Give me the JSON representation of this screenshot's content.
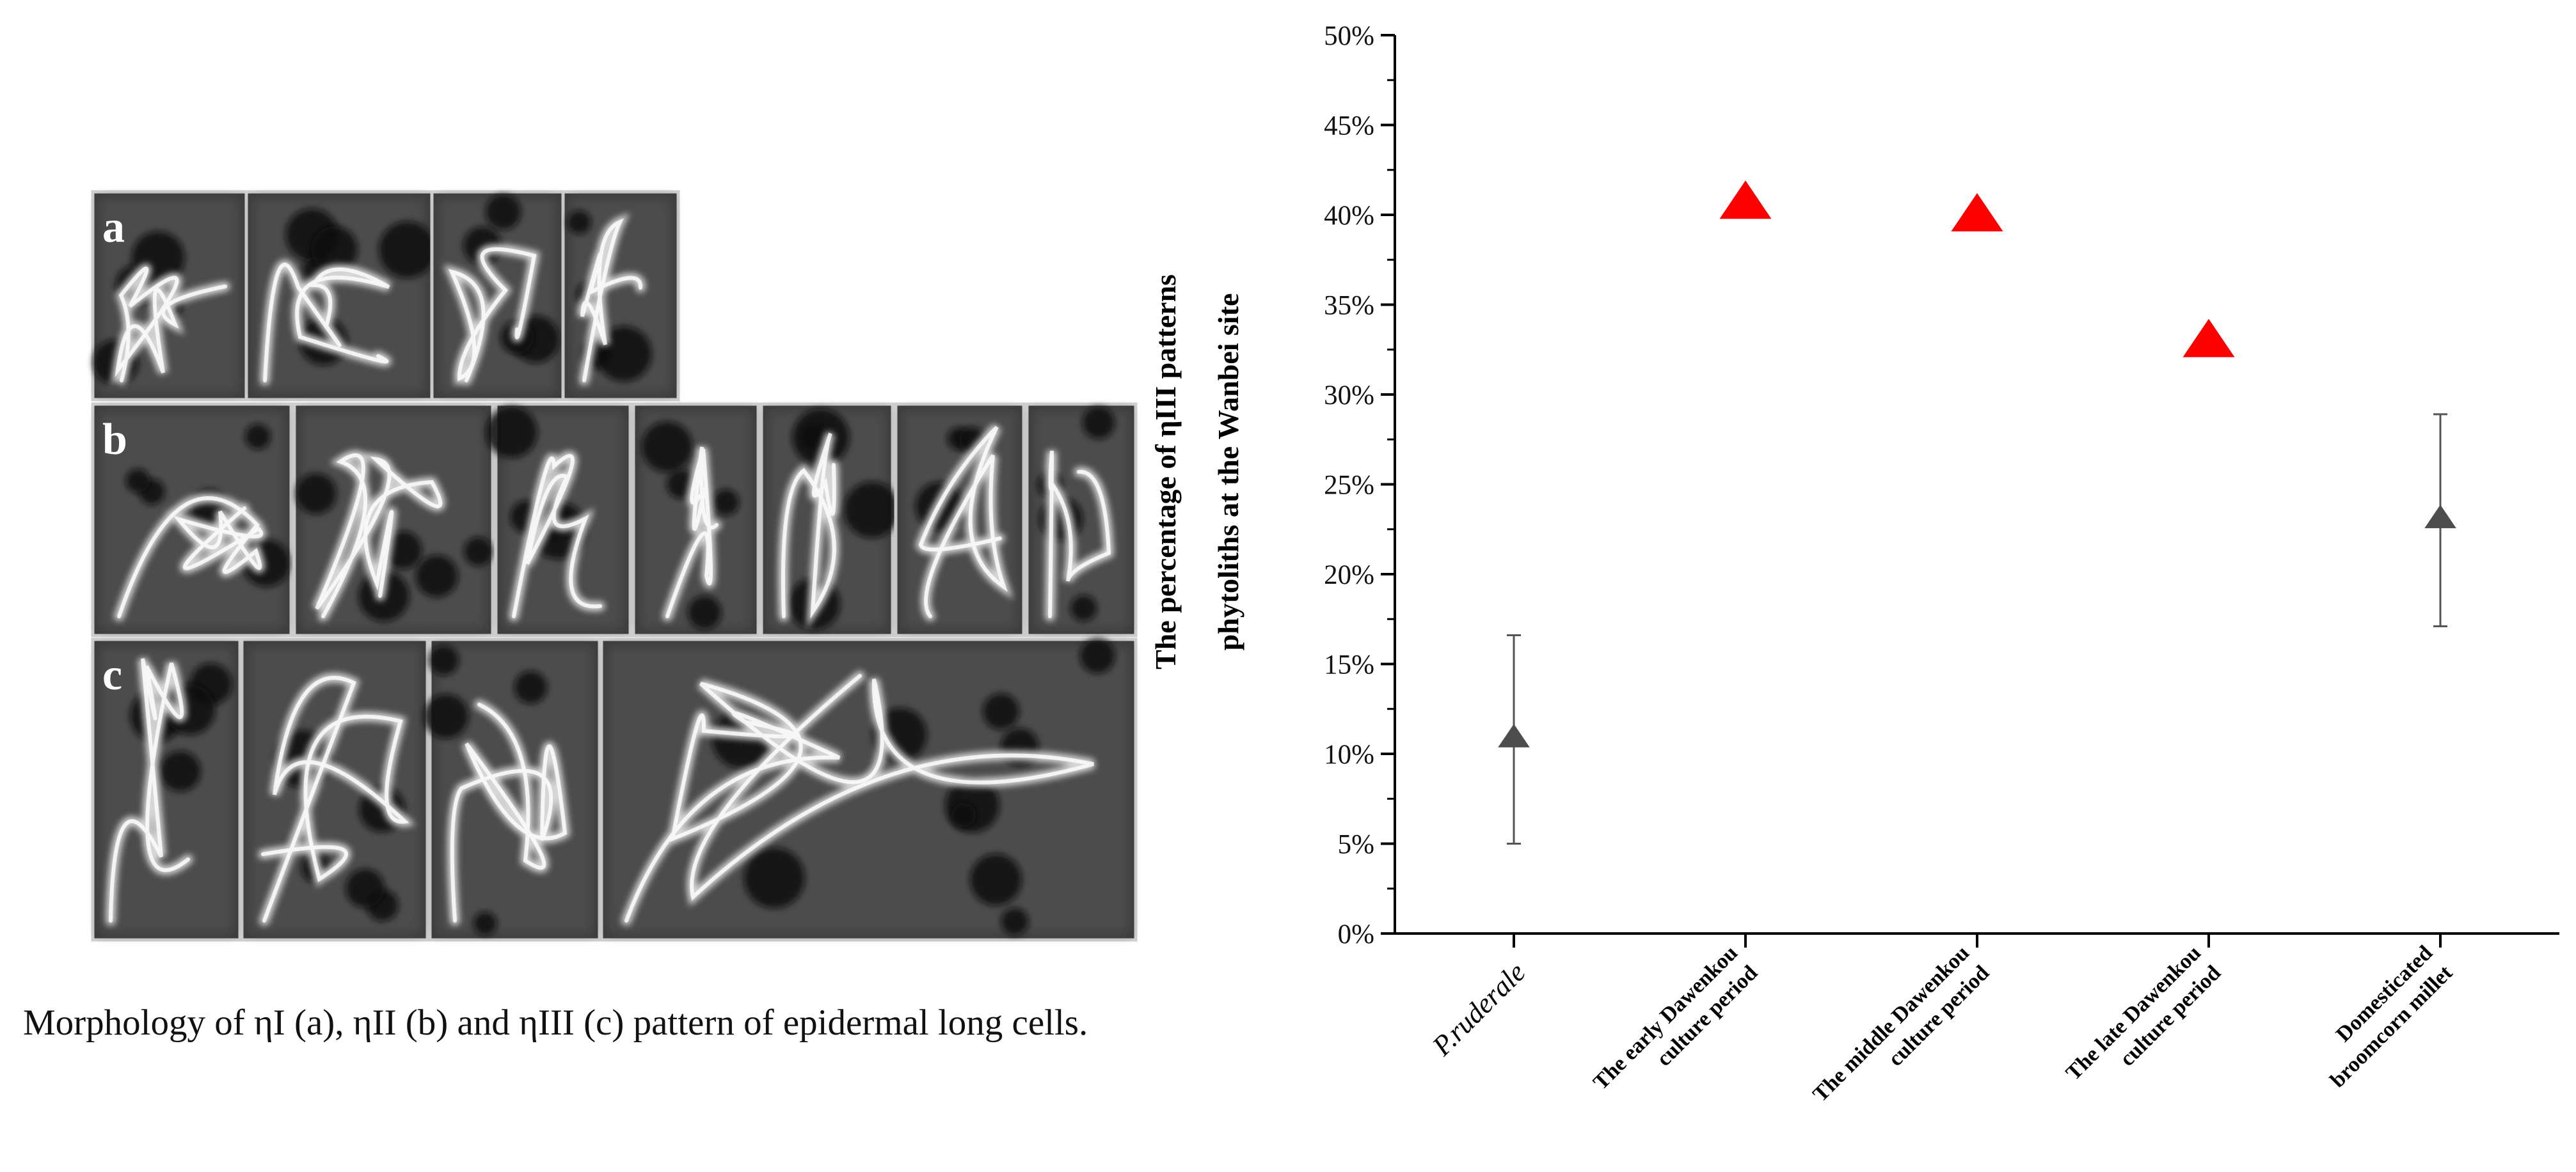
{
  "micrograph": {
    "panels": [
      {
        "letter": "a",
        "cells": 4
      },
      {
        "letter": "b",
        "cells": 7
      },
      {
        "letter": "c",
        "cells": 4
      }
    ],
    "caption": "Morphology of ηI (a), ηII (b) and ηIII (c) pattern of epidermal long cells."
  },
  "chart_data": {
    "type": "scatter",
    "ylabel": "The percentage of ηIII patterns phytoliths at the Wanbei site",
    "ylabel_lines": [
      "The percentage of ηIII patterns",
      "phytoliths at the Wanbei site"
    ],
    "ylim": [
      0,
      50
    ],
    "yticks": [
      "0%",
      "5%",
      "10%",
      "15%",
      "20%",
      "25%",
      "30%",
      "35%",
      "40%",
      "45%",
      "50%"
    ],
    "grid": false,
    "categories": [
      {
        "label_lines": [
          "P.ruderale"
        ],
        "italic": true
      },
      {
        "label_lines": [
          "The early Dawenkou",
          "culture period"
        ],
        "italic": false
      },
      {
        "label_lines": [
          "The middle Dawenkou",
          "culture period"
        ],
        "italic": false
      },
      {
        "label_lines": [
          "The late Dawenkou",
          "culture period"
        ],
        "italic": false
      },
      {
        "label_lines": [
          "Domesticated",
          "broomcorn millet"
        ],
        "italic": false
      }
    ],
    "points": [
      {
        "category": 0,
        "y": 10.8,
        "error_low": 5.0,
        "error_high": 16.6,
        "color": "#4d4d4d"
      },
      {
        "category": 1,
        "y": 40.5,
        "color": "#ff0000"
      },
      {
        "category": 2,
        "y": 39.8,
        "color": "#ff0000"
      },
      {
        "category": 3,
        "y": 32.8,
        "color": "#ff0000"
      },
      {
        "category": 4,
        "y": 23.0,
        "error_low": 17.1,
        "error_high": 28.9,
        "color": "#4d4d4d"
      }
    ]
  }
}
